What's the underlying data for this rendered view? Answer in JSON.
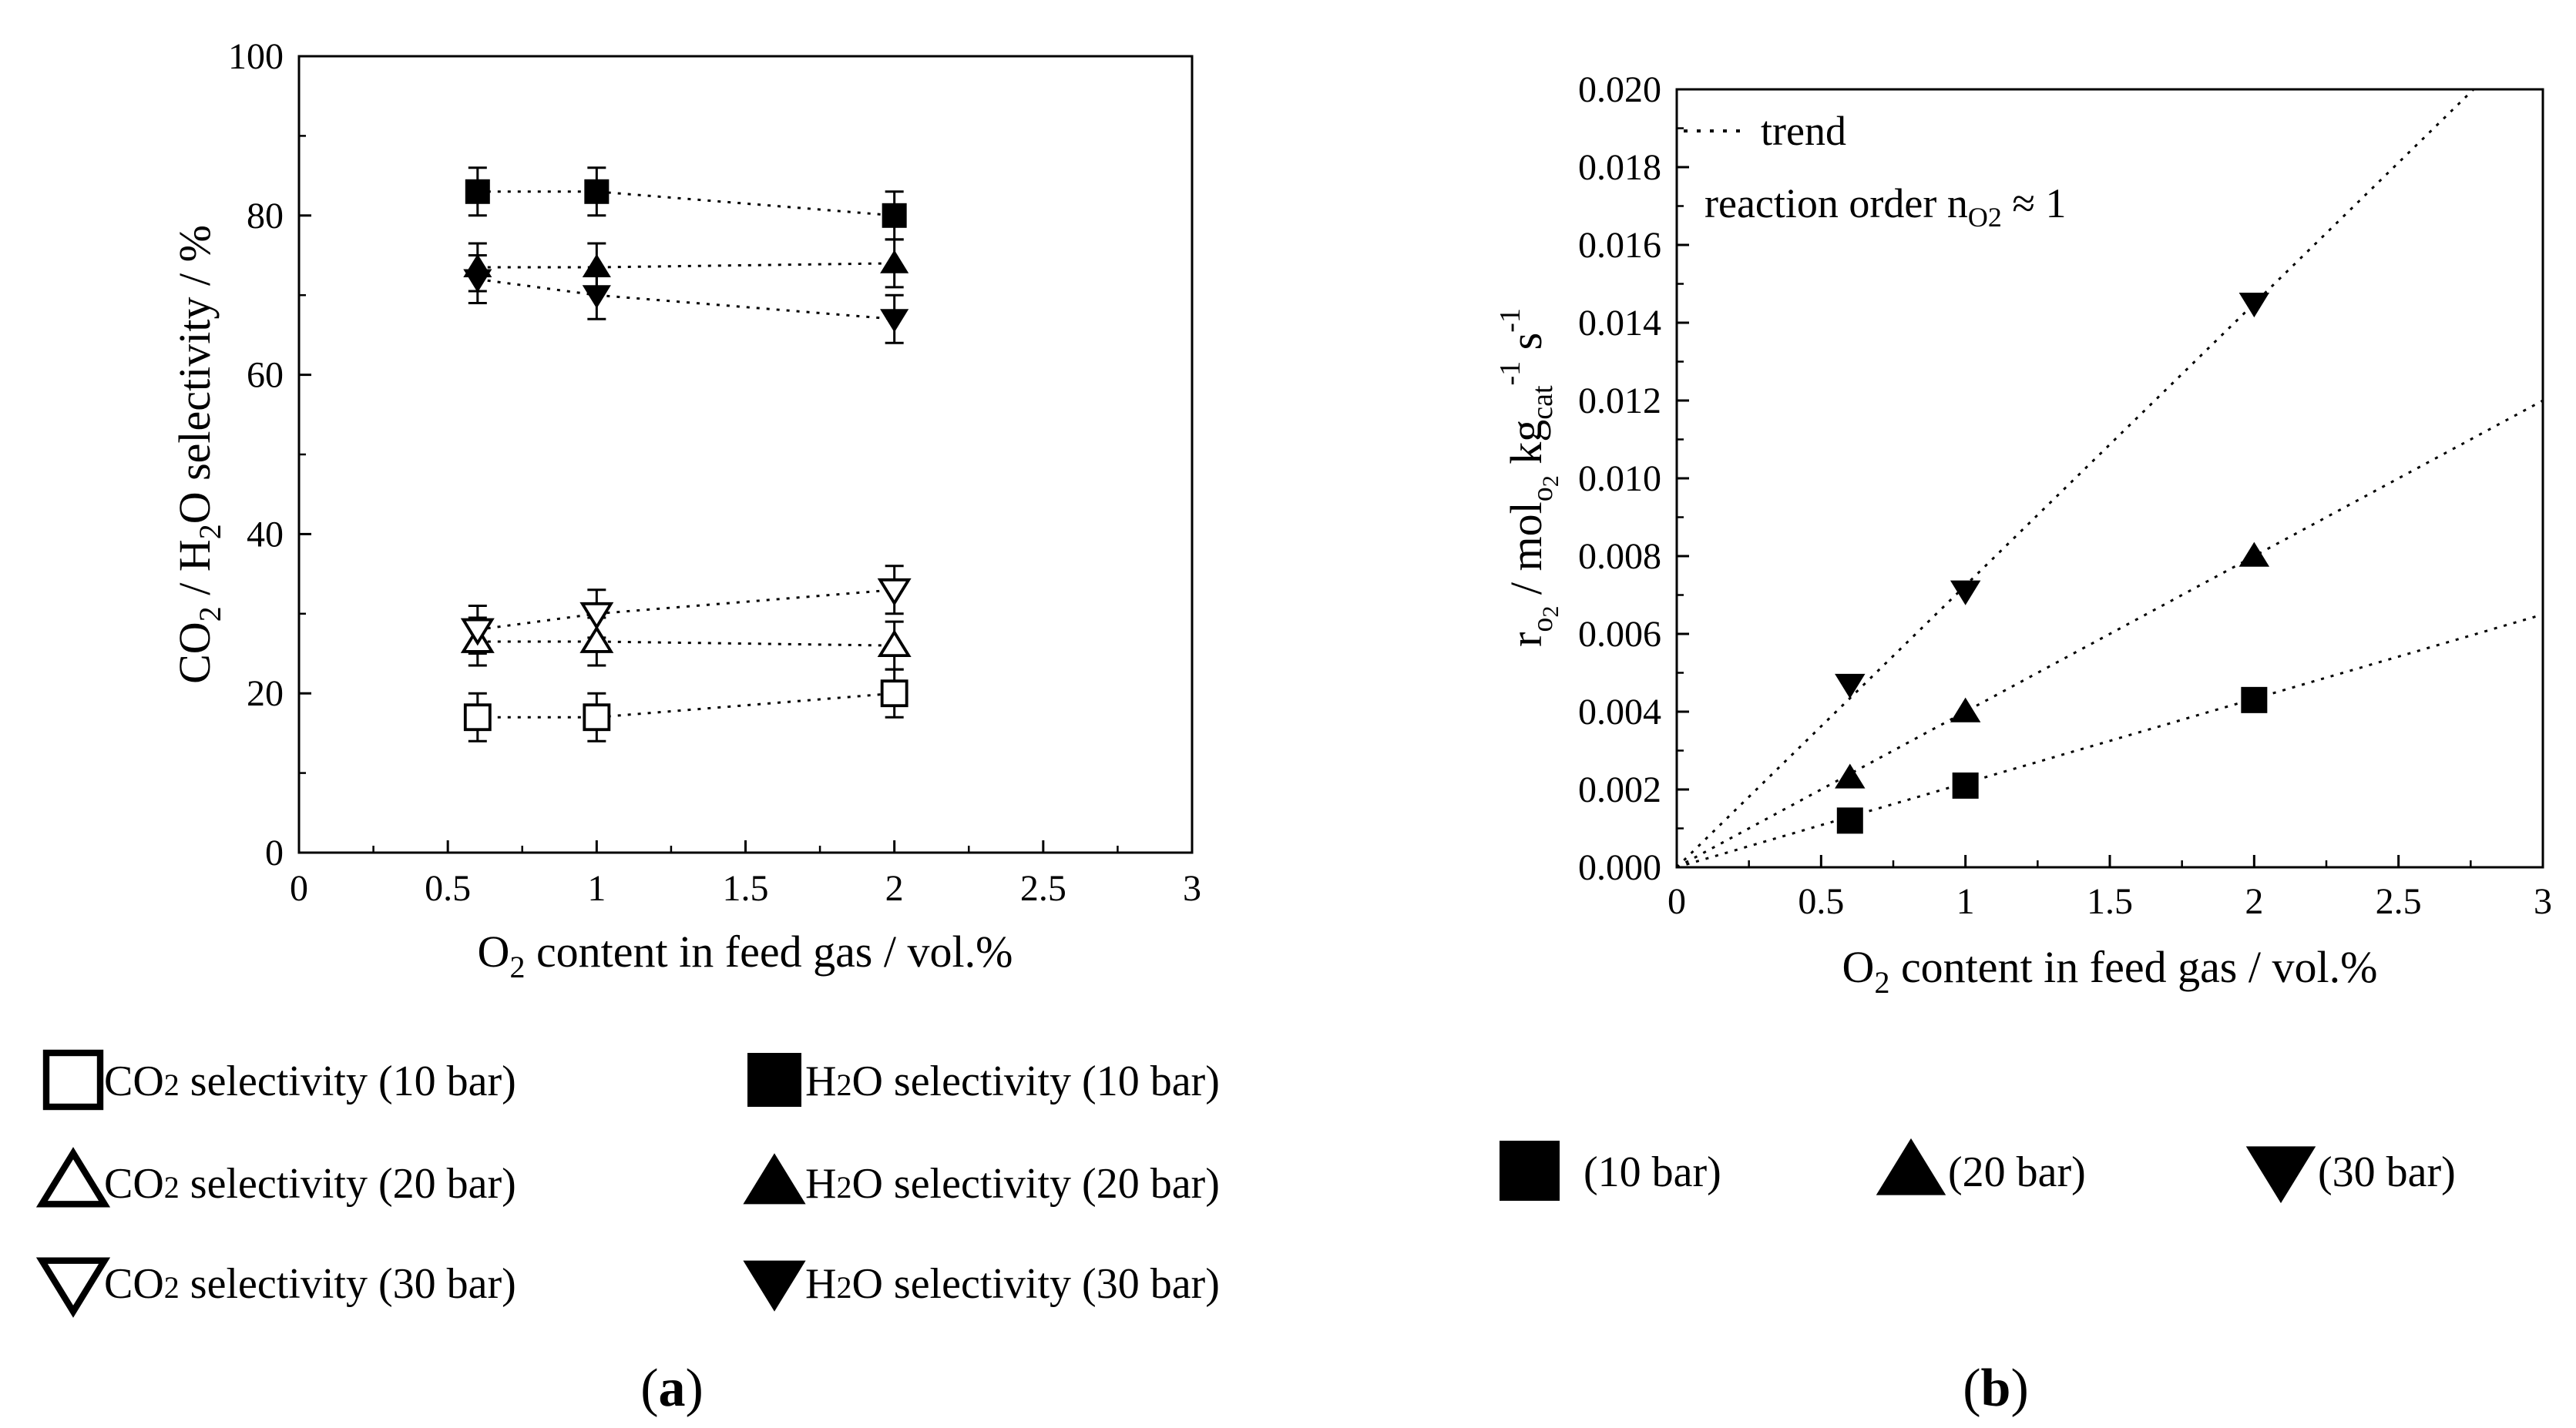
{
  "chart_data": [
    {
      "panel": "(a)",
      "type": "scatter",
      "title": "",
      "xlabel_parts": [
        "O",
        "2",
        " content in feed gas / vol.%"
      ],
      "ylabel_parts": [
        "CO",
        "2",
        " / H",
        "2",
        "O selectivity / %"
      ],
      "xlim": [
        0,
        3
      ],
      "ylim": [
        0,
        100
      ],
      "xticks": [
        0,
        0.5,
        1,
        1.5,
        2,
        2.5,
        3
      ],
      "xtick_labels": [
        "0",
        "0.5",
        "1",
        "1.5",
        "2",
        "2.5",
        "3"
      ],
      "yticks": [
        0,
        20,
        40,
        60,
        80,
        100
      ],
      "ytick_labels": [
        "0",
        "20",
        "40",
        "60",
        "80",
        "100"
      ],
      "grid": false,
      "series": [
        {
          "name": "CO2 selectivity (10 bar)",
          "marker": "square-open",
          "x": [
            0.6,
            1,
            2
          ],
          "y": [
            17,
            17,
            20
          ],
          "err": [
            3,
            3,
            3
          ]
        },
        {
          "name": "CO2 selectivity (20 bar)",
          "marker": "triangle-up-open",
          "x": [
            0.6,
            1,
            2
          ],
          "y": [
            26.5,
            26.5,
            26
          ],
          "err": [
            3,
            3,
            3
          ]
        },
        {
          "name": "CO2 selectivity (30 bar)",
          "marker": "triangle-down-open",
          "x": [
            0.6,
            1,
            2
          ],
          "y": [
            28,
            30,
            33
          ],
          "err": [
            3,
            3,
            3
          ]
        },
        {
          "name": "H2O selectivity (10 bar)",
          "marker": "square-filled",
          "x": [
            0.6,
            1,
            2
          ],
          "y": [
            83,
            83,
            80
          ],
          "err": [
            3,
            3,
            3
          ]
        },
        {
          "name": "H2O selectivity (20 bar)",
          "marker": "triangle-up-filled",
          "x": [
            0.6,
            1,
            2
          ],
          "y": [
            73.5,
            73.5,
            74
          ],
          "err": [
            3,
            3,
            3
          ]
        },
        {
          "name": "H2O selectivity (30 bar)",
          "marker": "triangle-down-filled",
          "x": [
            0.6,
            1,
            2
          ],
          "y": [
            72,
            70,
            67
          ],
          "err": [
            3,
            3,
            3
          ]
        }
      ],
      "legend": [
        {
          "parts": [
            "CO",
            "2",
            " selectivity (10 bar)"
          ],
          "marker": "square-open"
        },
        {
          "parts": [
            "H",
            "2",
            "O selectivity (10 bar)"
          ],
          "marker": "square-filled"
        },
        {
          "parts": [
            "CO",
            "2",
            " selectivity (20 bar)"
          ],
          "marker": "triangle-up-open"
        },
        {
          "parts": [
            "H",
            "2",
            "O selectivity (20 bar)"
          ],
          "marker": "triangle-up-filled"
        },
        {
          "parts": [
            "CO",
            "2",
            " selectivity (30 bar)"
          ],
          "marker": "triangle-down-open"
        },
        {
          "parts": [
            "H",
            "2",
            "O selectivity (30 bar)"
          ],
          "marker": "triangle-down-filled"
        }
      ]
    },
    {
      "panel": "(b)",
      "type": "scatter",
      "title": "",
      "xlabel_parts": [
        "O",
        "2",
        " content in feed gas / vol.%"
      ],
      "ylabel": "r_O2 / mol_O2 kg_cat^-1 s^-1",
      "ylabel_parts": {
        "r": "r",
        "o": "o",
        "two": "2",
        "mid": " / mol",
        "kg": " kg",
        "cat": "cat",
        "exp": "-1",
        "s": " s",
        "sexp": "-1"
      },
      "xlim": [
        0,
        3
      ],
      "ylim": [
        0,
        0.02
      ],
      "xticks": [
        0,
        0.5,
        1,
        1.5,
        2,
        2.5,
        3
      ],
      "xtick_labels": [
        "0",
        "0.5",
        "1",
        "1.5",
        "2",
        "2.5",
        "3"
      ],
      "yticks": [
        0,
        0.002,
        0.004,
        0.006,
        0.008,
        0.01,
        0.012,
        0.014,
        0.016,
        0.018,
        0.02
      ],
      "ytick_labels": [
        "0.000",
        "0.002",
        "0.004",
        "0.006",
        "0.008",
        "0.010",
        "0.012",
        "0.014",
        "0.016",
        "0.018",
        "0.020"
      ],
      "grid": false,
      "series": [
        {
          "name": "(10 bar)",
          "marker": "square-filled",
          "x": [
            0.6,
            1,
            2
          ],
          "y": [
            0.0012,
            0.0021,
            0.0043
          ],
          "trend": [
            [
              0,
              0
            ],
            [
              3,
              0.0065
            ]
          ]
        },
        {
          "name": "(20 bar)",
          "marker": "triangle-up-filled",
          "x": [
            0.6,
            1,
            2
          ],
          "y": [
            0.0023,
            0.004,
            0.008
          ],
          "trend": [
            [
              0,
              0
            ],
            [
              3,
              0.012
            ]
          ]
        },
        {
          "name": "(30 bar)",
          "marker": "triangle-down-filled",
          "x": [
            0.6,
            1,
            2
          ],
          "y": [
            0.0047,
            0.0071,
            0.0145
          ],
          "trend": [
            [
              0,
              0
            ],
            [
              2.76,
              0.02
            ]
          ]
        }
      ],
      "annotations": {
        "trend_label": "trend",
        "order_prefix": "reaction order n",
        "order_sub": "O2",
        "order_suffix": " ≈ 1"
      },
      "legend": [
        {
          "label": "(10 bar)",
          "marker": "square-filled"
        },
        {
          "label": "(20 bar)",
          "marker": "triangle-up-filled"
        },
        {
          "label": "(30 bar)",
          "marker": "triangle-down-filled"
        }
      ]
    }
  ]
}
